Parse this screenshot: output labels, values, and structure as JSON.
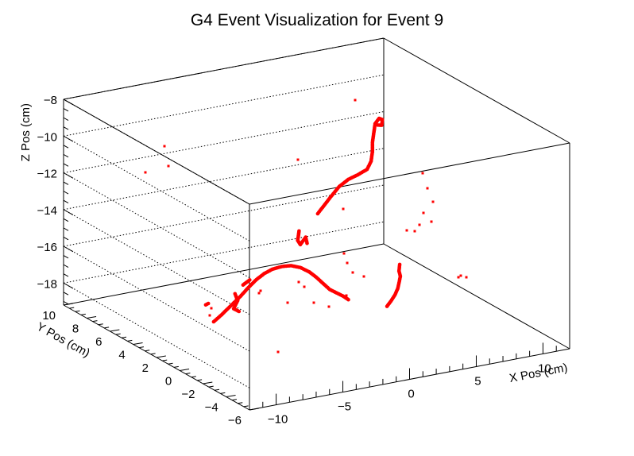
{
  "chart_data": {
    "type": "scatter",
    "title": "G4 Event Visualization for Event 9",
    "xlabel": "X Pos (cm)",
    "ylabel": "Y Pos (cm)",
    "zlabel": "Z Pos (cm)",
    "xlim": [
      -12,
      12
    ],
    "ylim": [
      -6,
      10
    ],
    "zlim": [
      -19.2,
      -8
    ],
    "x_ticks": [
      "-10",
      "-5",
      "0",
      "5",
      "10"
    ],
    "y_ticks": [
      "10",
      "8",
      "6",
      "4",
      "2",
      "0",
      "-2",
      "-4",
      "-6"
    ],
    "z_ticks": [
      "-8",
      "-10",
      "-12",
      "-14",
      "-16",
      "-18"
    ],
    "grid": true,
    "marker_color": "#ff0000",
    "series": [
      {
        "points": [
          [
            -5.8,
            4.2,
            -18.9
          ],
          [
            -5.2,
            4.2,
            -18.6
          ],
          [
            -4.5,
            4.2,
            -18.2
          ],
          [
            -3.8,
            4.2,
            -17.8
          ],
          [
            -3.2,
            4.2,
            -17.4
          ],
          [
            -2.6,
            4.2,
            -17.05
          ],
          [
            -2.0,
            4.2,
            -16.8
          ],
          [
            -1.4,
            4.2,
            -16.65
          ],
          [
            -0.7,
            4.2,
            -16.6
          ],
          [
            0.0,
            4.2,
            -16.65
          ],
          [
            0.7,
            4.2,
            -16.85
          ],
          [
            1.4,
            4.2,
            -17.2
          ],
          [
            1.9,
            4.2,
            -17.55
          ],
          [
            2.4,
            4.2,
            -17.95
          ],
          [
            2.9,
            4.2,
            -18.35
          ],
          [
            3.4,
            4.2,
            -18.6
          ],
          [
            3.9,
            4.2,
            -18.85
          ],
          [
            4.3,
            4.2,
            -19.1
          ],
          [
            5.8,
            2.6,
            -19.1
          ],
          [
            6.1,
            2.6,
            -18.85
          ],
          [
            6.4,
            2.6,
            -18.55
          ],
          [
            6.6,
            2.6,
            -18.25
          ],
          [
            6.7,
            2.6,
            -17.95
          ],
          [
            6.8,
            2.6,
            -17.6
          ],
          [
            6.7,
            2.6,
            -17.3
          ],
          [
            6.75,
            2.6,
            -16.95
          ],
          [
            2.0,
            4.2,
            -14.1
          ],
          [
            2.5,
            4.2,
            -13.7
          ],
          [
            3.0,
            4.2,
            -13.3
          ],
          [
            3.6,
            4.2,
            -12.85
          ],
          [
            4.3,
            4.2,
            -12.55
          ],
          [
            5.0,
            4.2,
            -12.4
          ],
          [
            5.7,
            4.2,
            -12.2
          ],
          [
            6.0,
            4.2,
            -11.8
          ],
          [
            6.1,
            4.2,
            -11.3
          ],
          [
            6.1,
            4.2,
            -10.8
          ],
          [
            6.2,
            4.2,
            -10.3
          ],
          [
            6.3,
            4.2,
            -9.8
          ],
          [
            6.6,
            4.2,
            -9.55
          ],
          [
            6.85,
            4.2,
            -9.65
          ],
          [
            6.8,
            4.2,
            -9.95
          ],
          [
            6.5,
            4.2,
            -9.9
          ],
          [
            0.6,
            4.2,
            -14.85
          ],
          [
            0.55,
            4.2,
            -15.1
          ],
          [
            0.5,
            4.2,
            -15.35
          ],
          [
            0.7,
            4.2,
            -15.6
          ],
          [
            1.1,
            4.2,
            -15.25
          ],
          [
            1.2,
            4.2,
            -15.6
          ],
          [
            -4.2,
            4.2,
            -17.6
          ],
          [
            -4.0,
            4.2,
            -18.0
          ],
          [
            -4.3,
            4.2,
            -18.4
          ],
          [
            -3.9,
            4.2,
            -18.6
          ],
          [
            -6.2,
            4.2,
            -17.85
          ],
          [
            -6.4,
            4.2,
            -17.9
          ],
          [
            -3.1,
            4.2,
            -17.0
          ],
          [
            -3.6,
            4.2,
            -17.2
          ]
        ]
      }
    ]
  }
}
